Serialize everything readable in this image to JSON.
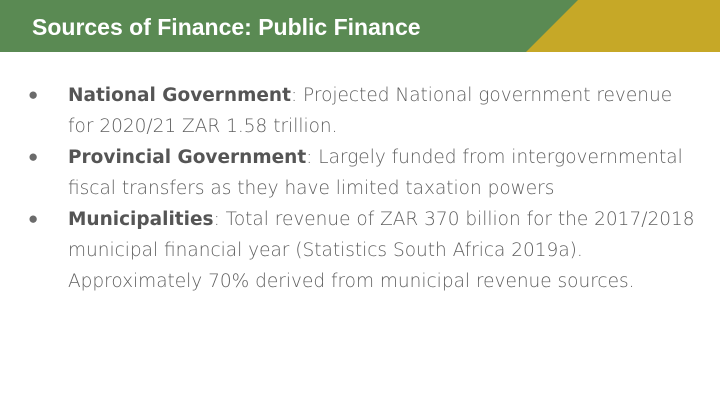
{
  "slide": {
    "title": "Sources of Finance: Public Finance",
    "bullets": [
      {
        "term": "National Government",
        "text": ": Projected National government revenue for 2020/21  ZAR 1.58 trillion."
      },
      {
        "term": "Provincial Government",
        "text": ": Largely funded from intergovernmental fiscal transfers as they have limited taxation powers"
      },
      {
        "term": "Municipalities",
        "text": ": Total revenue of ZAR 370 billion for the 2017/2018 municipal financial year (Statistics South Africa 2019a). Approximately 70% derived from municipal revenue sources."
      }
    ],
    "bullet_glyph": "●"
  },
  "colors": {
    "header_green": "#5a8a53",
    "header_gold": "#c6a827",
    "body_text": "#5f5f5f"
  }
}
